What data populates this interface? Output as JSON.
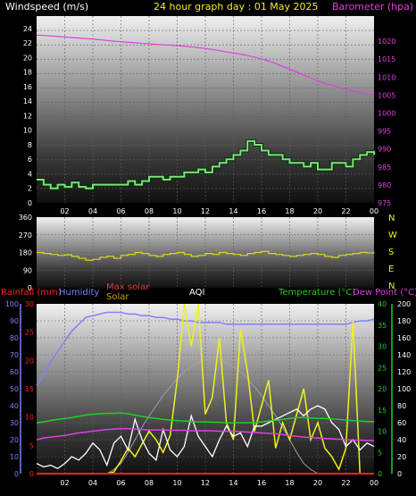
{
  "header": {
    "left_label": "Windspeed (m/s)",
    "title": "24 hour graph day : 01 May 2025",
    "right_label": "Barometer (hpa)"
  },
  "bottom_header": {
    "rainfall_label": "Rainfall (mm)",
    "humidity_label": "Humidity",
    "max_solar_label": "Max solar",
    "solar_label": "Solar",
    "aqi_label": "AQI",
    "temperature_label": "Temperature (°C)",
    "dewpoint_label": "Dew Point (°C)"
  },
  "colors": {
    "windspeed": "#7fe07f",
    "barometer": "#e040e0",
    "direction": "#d8d820",
    "rainfall": "#ff2020",
    "humidity": "#8080ff",
    "max_solar": "#a0a0a0",
    "solar": "#f0f020",
    "aqi": "#ffffff",
    "temperature": "#20d020",
    "dewpoint": "#e040e0"
  },
  "chart_data": [
    {
      "type": "line",
      "x": [
        0.0,
        0.5,
        1.0,
        1.5,
        2.0,
        2.5,
        3.0,
        3.5,
        4.0,
        4.5,
        5.0,
        5.5,
        6.0,
        6.5,
        7.0,
        7.5,
        8.0,
        8.5,
        9.0,
        9.5,
        10.0,
        10.5,
        11.0,
        11.5,
        12.0,
        12.5,
        13.0,
        13.5,
        14.0,
        14.5,
        15.0,
        15.5,
        16.0,
        16.5,
        17.0,
        17.5,
        18.0,
        18.5,
        19.0,
        19.5,
        20.0,
        20.5,
        21.0,
        21.5,
        22.0,
        22.5,
        23.0,
        23.5,
        24.0
      ],
      "x_ticks": [
        "02",
        "04",
        "06",
        "08",
        "10",
        "12",
        "14",
        "16",
        "18",
        "20",
        "22",
        "00"
      ],
      "series": [
        {
          "name": "Windspeed (m/s)",
          "axis": "left",
          "values": [
            3.2,
            2.5,
            2.0,
            2.5,
            2.2,
            2.8,
            2.2,
            2.0,
            2.5,
            2.5,
            2.5,
            2.5,
            2.5,
            3.0,
            2.5,
            3.0,
            3.6,
            3.6,
            3.2,
            3.6,
            3.6,
            4.2,
            4.2,
            4.6,
            4.2,
            5.0,
            5.5,
            6.0,
            6.6,
            7.2,
            8.5,
            8.0,
            7.2,
            6.6,
            6.6,
            6.0,
            5.5,
            5.5,
            5.0,
            5.5,
            4.6,
            4.6,
            5.5,
            5.5,
            5.0,
            6.0,
            6.6,
            7.0,
            6.6
          ]
        },
        {
          "name": "Barometer (hpa)",
          "axis": "right",
          "values": [
            1021.7,
            1021.6,
            1021.5,
            1021.3,
            1021.2,
            1021.0,
            1020.9,
            1020.7,
            1020.6,
            1020.4,
            1020.2,
            1020.0,
            1019.9,
            1019.7,
            1019.6,
            1019.4,
            1019.3,
            1019.1,
            1019.0,
            1018.9,
            1018.8,
            1018.6,
            1018.4,
            1018.2,
            1018.0,
            1017.7,
            1017.4,
            1017.0,
            1016.7,
            1016.4,
            1016.0,
            1015.6,
            1015.1,
            1014.5,
            1013.8,
            1013.0,
            1012.2,
            1011.4,
            1010.6,
            1009.8,
            1009.0,
            1008.3,
            1007.7,
            1007.1,
            1006.6,
            1006.1,
            1005.7,
            1005.4,
            1005.2
          ]
        }
      ],
      "y_left_ticks": [
        0,
        2,
        4,
        6,
        8,
        10,
        12,
        14,
        16,
        18,
        20,
        22,
        24
      ],
      "y_left_range": [
        0,
        25.7
      ],
      "y_right_ticks": [
        975,
        980,
        985,
        990,
        995,
        1000,
        1005,
        1010,
        1015,
        1020
      ],
      "y_right_range": [
        975,
        1027
      ],
      "grid": true
    },
    {
      "type": "line",
      "series": [
        {
          "name": "Wind direction",
          "values": [
            180,
            175,
            170,
            165,
            168,
            160,
            150,
            140,
            145,
            155,
            160,
            150,
            165,
            170,
            180,
            175,
            165,
            160,
            170,
            175,
            180,
            170,
            160,
            165,
            175,
            170,
            180,
            175,
            170,
            165,
            175,
            180,
            185,
            175,
            170,
            165,
            160,
            165,
            170,
            175,
            170,
            160,
            155,
            165,
            170,
            175,
            180,
            178,
            175
          ]
        }
      ],
      "y_ticks": [
        0,
        90,
        180,
        270,
        360
      ],
      "y_range": [
        0,
        360
      ],
      "right_labels": [
        "N",
        "W",
        "S",
        "E",
        "N"
      ],
      "grid": true
    },
    {
      "type": "line",
      "series": [
        {
          "name": "Humidity",
          "axis": "humidity",
          "values": [
            52,
            58,
            66,
            72,
            78,
            84,
            88,
            92,
            93,
            94,
            95,
            95,
            95,
            94,
            94,
            93,
            93,
            92,
            92,
            91,
            91,
            90,
            90,
            89,
            89,
            89,
            89,
            88,
            88,
            88,
            88,
            88,
            88,
            88,
            88,
            88,
            88,
            88,
            88,
            88,
            88,
            88,
            88,
            88,
            88,
            89,
            90,
            90,
            91
          ]
        },
        {
          "name": "Temperature (°C)",
          "axis": "temperature",
          "values": [
            12,
            12.2,
            12.5,
            12.8,
            13,
            13.2,
            13.5,
            13.8,
            14,
            14.1,
            14.2,
            14.2,
            14.3,
            14.1,
            13.8,
            13.5,
            13.2,
            13,
            12.8,
            12.6,
            12.5,
            12.4,
            12.3,
            12.2,
            12.2,
            12.1,
            12.1,
            12,
            12,
            12,
            12,
            12,
            12.2,
            12.4,
            12.6,
            12.8,
            13,
            13.2,
            13.2,
            13.1,
            13,
            13,
            12.9,
            12.8,
            12.6,
            12.5,
            12.4,
            12.3,
            12.2
          ]
        },
        {
          "name": "Dew Point (°C)",
          "axis": "temperature",
          "values": [
            8.0,
            8.4,
            8.6,
            8.8,
            9.0,
            9.3,
            9.6,
            9.8,
            10.0,
            10.2,
            10.4,
            10.5,
            10.6,
            10.6,
            10.5,
            10.4,
            10.3,
            10.3,
            10.3,
            10.2,
            10.2,
            10.2,
            10.1,
            10.1,
            10.1,
            10.1,
            10.0,
            10.0,
            10.0,
            9.9,
            9.8,
            9.7,
            9.6,
            9.5,
            9.4,
            9.2,
            9.0,
            8.8,
            8.6,
            8.5,
            8.4,
            8.3,
            8.2,
            8.1,
            8.0,
            7.9,
            7.9,
            7.8,
            7.8
          ]
        },
        {
          "name": "Max solar",
          "axis": "solar",
          "values": [
            0,
            0,
            0,
            0,
            0,
            0,
            0,
            0,
            0,
            0,
            0,
            5,
            12,
            25,
            40,
            55,
            68,
            80,
            92,
            102,
            112,
            120,
            126,
            131,
            134,
            135,
            134,
            131,
            126,
            120,
            112,
            102,
            92,
            80,
            68,
            55,
            40,
            25,
            12,
            5,
            0,
            0,
            0,
            0,
            0,
            0,
            0,
            0,
            0
          ]
        },
        {
          "name": "Solar",
          "axis": "solar",
          "values": [
            0,
            0,
            0,
            0,
            0,
            0,
            0,
            0,
            0,
            0,
            0,
            2,
            15,
            30,
            20,
            35,
            50,
            40,
            25,
            45,
            110,
            200,
            150,
            200,
            70,
            90,
            160,
            60,
            40,
            170,
            120,
            50,
            80,
            110,
            30,
            60,
            40,
            70,
            100,
            40,
            60,
            30,
            20,
            5,
            30,
            180,
            0,
            0,
            0
          ]
        },
        {
          "name": "AQI",
          "axis": "aqi",
          "values": [
            6,
            4,
            5,
            3,
            6,
            10,
            8,
            12,
            18,
            14,
            5,
            18,
            22,
            14,
            32,
            20,
            12,
            8,
            26,
            14,
            10,
            16,
            34,
            22,
            16,
            10,
            20,
            28,
            22,
            24,
            16,
            28,
            28,
            30,
            32,
            34,
            36,
            38,
            34,
            38,
            40,
            38,
            30,
            26,
            16,
            20,
            14,
            18,
            16
          ]
        },
        {
          "name": "Rainfall (mm)",
          "axis": "rainfall",
          "values": [
            0,
            0,
            0,
            0,
            0,
            0,
            0,
            0,
            0,
            0,
            0,
            0,
            0,
            0,
            0,
            0,
            0,
            0,
            0,
            0,
            0,
            0,
            0,
            0,
            0,
            0,
            0,
            0,
            0,
            0,
            0,
            0,
            0,
            0,
            0,
            0,
            0,
            0,
            0,
            0,
            0,
            0,
            0,
            0,
            0,
            0,
            0,
            0,
            0
          ]
        }
      ],
      "humidity_ticks": [
        0,
        10,
        20,
        30,
        40,
        50,
        60,
        70,
        80,
        90,
        100
      ],
      "humidity_range": [
        0,
        100
      ],
      "rainfall_ticks": [
        0,
        5,
        10,
        15,
        20,
        25,
        30
      ],
      "rainfall_range": [
        0,
        30
      ],
      "temperature_ticks": [
        0,
        5,
        10,
        15,
        20,
        25,
        30,
        35,
        40
      ],
      "temperature_range": [
        0,
        40
      ],
      "solar_ticks": [
        0,
        20,
        40,
        60,
        80,
        100,
        120,
        140,
        160,
        180,
        200
      ],
      "solar_range": [
        0,
        200
      ],
      "aqi_range": [
        0,
        100
      ],
      "grid": true
    }
  ]
}
